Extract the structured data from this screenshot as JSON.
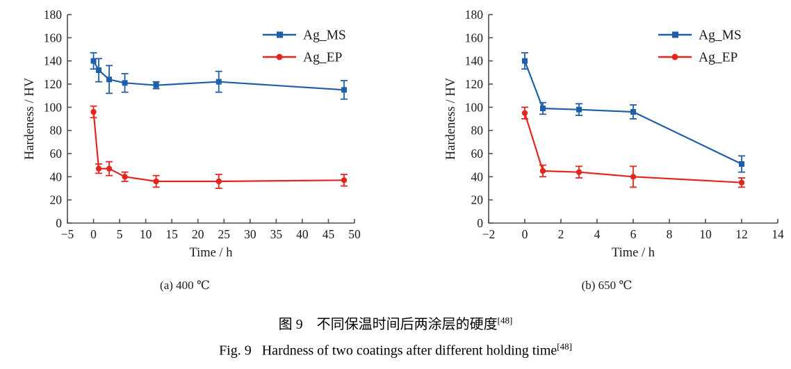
{
  "figure": {
    "caption_zh": {
      "text": "图 9　不同保温时间后两涂层的硬度",
      "ref": "[48]"
    },
    "caption_en": {
      "text": "Fig. 9   Hardness of two coatings after different holding time",
      "ref": "[48]"
    }
  },
  "colors": {
    "ms": "#1E5FA9",
    "ep": "#E3261D",
    "axis": "#4D4D4D",
    "text": "#1A1A1A"
  },
  "chart_data": [
    {
      "type": "line",
      "title": "",
      "subcaption": "(a) 400 ℃",
      "xlabel": "Time / h",
      "ylabel": "Hardeness / HV",
      "xlim": [
        -5,
        50
      ],
      "xticks": [
        -5,
        0,
        5,
        10,
        15,
        20,
        25,
        30,
        35,
        40,
        45,
        50
      ],
      "ylim": [
        0,
        180
      ],
      "yticks": [
        0,
        20,
        40,
        60,
        80,
        100,
        120,
        140,
        160,
        180
      ],
      "grid": false,
      "legend_position": "upper right",
      "series": [
        {
          "name": "Ag_MS",
          "color_key": "ms",
          "marker": "square",
          "x": [
            0,
            1,
            3,
            6,
            12,
            24,
            48
          ],
          "y": [
            140,
            132,
            124,
            121,
            119,
            122,
            115
          ],
          "yerr": [
            7,
            10,
            12,
            8,
            3,
            9,
            8
          ]
        },
        {
          "name": "Ag_EP",
          "color_key": "ep",
          "marker": "circle",
          "x": [
            0,
            1,
            3,
            6,
            12,
            24,
            48
          ],
          "y": [
            96,
            47,
            47,
            40,
            36,
            36,
            37
          ],
          "yerr": [
            5,
            4,
            6,
            4,
            5,
            6,
            5
          ]
        }
      ]
    },
    {
      "type": "line",
      "title": "",
      "subcaption": "(b) 650 ℃",
      "xlabel": "Time / h",
      "ylabel": "Hardeness / HV",
      "xlim": [
        -2,
        14
      ],
      "xticks": [
        -2,
        0,
        2,
        4,
        6,
        8,
        10,
        12,
        14
      ],
      "ylim": [
        0,
        180
      ],
      "yticks": [
        0,
        20,
        40,
        60,
        80,
        100,
        120,
        140,
        160,
        180
      ],
      "grid": false,
      "legend_position": "upper right",
      "series": [
        {
          "name": "Ag_MS",
          "color_key": "ms",
          "marker": "square",
          "x": [
            0,
            1,
            3,
            6,
            12
          ],
          "y": [
            140,
            99,
            98,
            96,
            51
          ],
          "yerr": [
            7,
            5,
            5,
            6,
            7
          ]
        },
        {
          "name": "Ag_EP",
          "color_key": "ep",
          "marker": "circle",
          "x": [
            0,
            1,
            3,
            6,
            12
          ],
          "y": [
            95,
            45,
            44,
            40,
            35
          ],
          "yerr": [
            5,
            5,
            5,
            9,
            4
          ]
        }
      ]
    }
  ]
}
